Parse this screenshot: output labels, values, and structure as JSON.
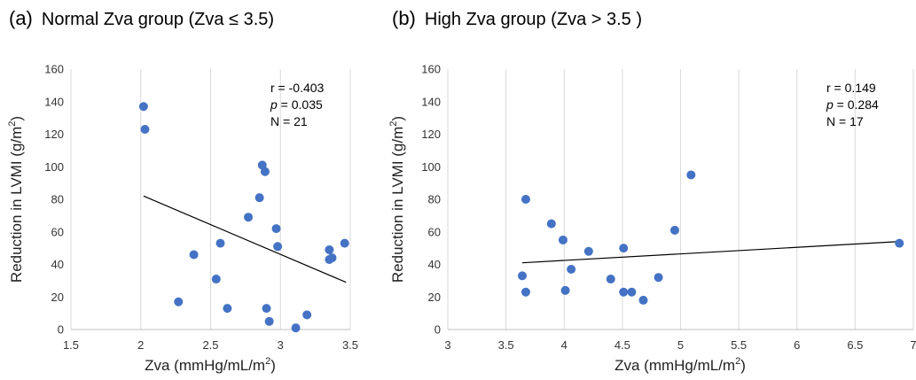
{
  "panels": [
    {
      "letter": "(a)",
      "title": "Normal Zva group (Zva ≤ 3.5)",
      "stats": {
        "r": "r = -0.403",
        "p_label": "p",
        "p_rest": " = 0.035",
        "n": "N = 21"
      }
    },
    {
      "letter": "(b)",
      "title": "High Zva group (Zva > 3.5 )",
      "stats": {
        "r": "r = 0.149",
        "p_label": "p",
        "p_rest": " = 0.284",
        "n": "N = 17"
      }
    }
  ],
  "chart_data": [
    {
      "type": "scatter",
      "title": "Normal Zva group (Zva ≤ 3.5)",
      "xlabel": "Zva (mmHg/mL/m2)",
      "ylabel": "Reduction in LVMI (g/m2)",
      "xlim": [
        1.5,
        3.5
      ],
      "ylim": [
        0,
        160
      ],
      "xticks": [
        "1.5",
        "2",
        "2.5",
        "3",
        "3.5"
      ],
      "yticks": [
        "0",
        "20",
        "40",
        "60",
        "80",
        "100",
        "120",
        "140",
        "160"
      ],
      "grid": "vertical",
      "marker_color": "#4472C4",
      "points": [
        [
          2.02,
          137
        ],
        [
          2.03,
          123
        ],
        [
          2.27,
          17
        ],
        [
          2.38,
          46
        ],
        [
          2.54,
          31
        ],
        [
          2.57,
          53
        ],
        [
          2.62,
          13
        ],
        [
          2.77,
          69
        ],
        [
          2.85,
          81
        ],
        [
          2.87,
          101
        ],
        [
          2.89,
          97
        ],
        [
          2.9,
          13
        ],
        [
          2.92,
          5
        ],
        [
          2.97,
          62
        ],
        [
          2.98,
          51
        ],
        [
          3.11,
          1
        ],
        [
          3.19,
          9
        ],
        [
          3.35,
          49
        ],
        [
          3.35,
          43
        ],
        [
          3.37,
          44
        ],
        [
          3.46,
          53
        ]
      ],
      "trendline": {
        "x": [
          2.02,
          3.47
        ],
        "y": [
          82,
          29
        ]
      }
    },
    {
      "type": "scatter",
      "title": "High Zva group (Zva > 3.5 )",
      "xlabel": "Zva (mmHg/mL/m2)",
      "ylabel": "Reduction in LVMI (g/m2)",
      "xlim": [
        3,
        7
      ],
      "ylim": [
        0,
        160
      ],
      "xticks": [
        "3",
        "3.5",
        "4",
        "4.5",
        "5",
        "5.5",
        "6",
        "6.5",
        "7"
      ],
      "yticks": [
        "0",
        "20",
        "40",
        "60",
        "80",
        "100",
        "120",
        "140",
        "160"
      ],
      "grid": "vertical",
      "marker_color": "#4472C4",
      "points": [
        [
          3.64,
          33
        ],
        [
          3.67,
          80
        ],
        [
          3.67,
          23
        ],
        [
          3.89,
          65
        ],
        [
          3.99,
          55
        ],
        [
          4.01,
          24
        ],
        [
          4.06,
          37
        ],
        [
          4.21,
          48
        ],
        [
          4.4,
          31
        ],
        [
          4.51,
          23
        ],
        [
          4.51,
          50
        ],
        [
          4.58,
          23
        ],
        [
          4.68,
          18
        ],
        [
          4.81,
          32
        ],
        [
          4.95,
          61
        ],
        [
          5.09,
          95
        ],
        [
          6.88,
          53
        ]
      ],
      "trendline": {
        "x": [
          3.64,
          6.87
        ],
        "y": [
          41,
          54
        ]
      }
    }
  ]
}
